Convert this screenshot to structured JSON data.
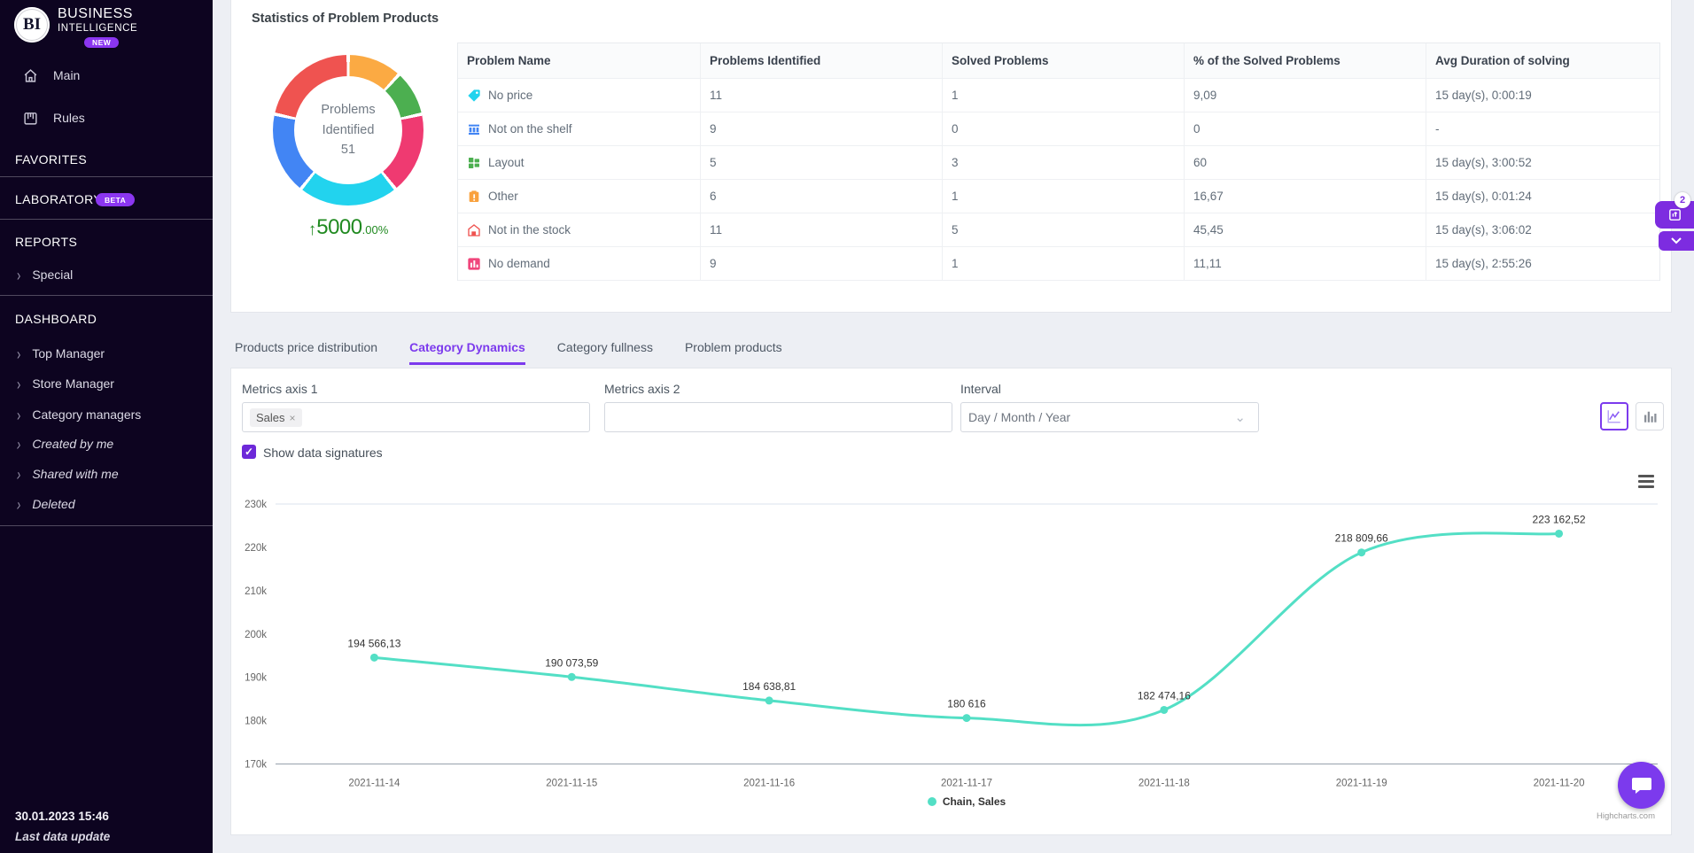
{
  "sidebar": {
    "logo": "BI",
    "brand_line1": "BUSINESS",
    "brand_line2": "INTELLIGENCE",
    "new_badge": "NEW",
    "main_label": "Main",
    "rules_label": "Rules",
    "favorites_title": "FAVORITES",
    "laboratory_title": "LABORATORY",
    "beta_badge": "BETA",
    "reports_title": "REPORTS",
    "special_label": "Special",
    "dashboard_title": "DASHBOARD",
    "dashboard_items": [
      {
        "label": "Top Manager",
        "italic": false
      },
      {
        "label": "Store Manager",
        "italic": false
      },
      {
        "label": "Category managers",
        "italic": false
      },
      {
        "label": "Created by me",
        "italic": true
      },
      {
        "label": "Shared with me",
        "italic": true
      },
      {
        "label": "Deleted",
        "italic": true
      }
    ],
    "footer_timestamp": "30.01.2023 15:46",
    "footer_caption": "Last data update"
  },
  "stats_card": {
    "title": "Statistics of Problem Products",
    "donut": {
      "center_line1": "Problems",
      "center_line2": "Identified",
      "center_value": "51",
      "change_arrow": "↑",
      "change_value": "5000",
      "change_suffix": ".00%",
      "change_color": "#218a21",
      "segments": [
        {
          "name": "Other",
          "value": 6,
          "color": "#fbaa43"
        },
        {
          "name": "Layout",
          "value": 5,
          "color": "#4caf50"
        },
        {
          "name": "No demand",
          "value": 9,
          "color": "#ef3a71"
        },
        {
          "name": "No price",
          "value": 11,
          "color": "#22d3ee"
        },
        {
          "name": "Not on the shelf",
          "value": 9,
          "color": "#4285f4"
        },
        {
          "name": "Not in the stock",
          "value": 11,
          "color": "#ef5350"
        }
      ]
    },
    "table": {
      "columns": [
        "Problem Name",
        "Problems Identified",
        "Solved Problems",
        "% of the Solved Problems",
        "Avg Duration of solving"
      ],
      "rows": [
        {
          "icon": "price-tag-icon",
          "name": "No price",
          "identified": "11",
          "solved": "1",
          "percent": "9,09",
          "duration": "15 day(s), 0:00:19"
        },
        {
          "icon": "shelf-icon",
          "name": "Not on the shelf",
          "identified": "9",
          "solved": "0",
          "percent": "0",
          "duration": "-"
        },
        {
          "icon": "layout-icon",
          "name": "Layout",
          "identified": "5",
          "solved": "3",
          "percent": "60",
          "duration": "15 day(s), 3:00:52"
        },
        {
          "icon": "clipboard-icon",
          "name": "Other",
          "identified": "6",
          "solved": "1",
          "percent": "16,67",
          "duration": "15 day(s), 0:01:24"
        },
        {
          "icon": "warehouse-icon",
          "name": "Not in the stock",
          "identified": "11",
          "solved": "5",
          "percent": "45,45",
          "duration": "15 day(s), 3:06:02"
        },
        {
          "icon": "bar-chart-icon",
          "name": "No demand",
          "identified": "9",
          "solved": "1",
          "percent": "11,11",
          "duration": "15 day(s), 2:55:26"
        }
      ]
    }
  },
  "tabs": [
    {
      "label": "Products price distribution",
      "active": false
    },
    {
      "label": "Category Dynamics",
      "active": true
    },
    {
      "label": "Category fullness",
      "active": false
    },
    {
      "label": "Problem products",
      "active": false
    }
  ],
  "controls": {
    "metrics1_label": "Metrics axis 1",
    "metrics1_chip": "Sales",
    "chip_remove": "×",
    "metrics2_label": "Metrics axis 2",
    "metrics2_value": "",
    "interval_label": "Interval",
    "interval_value": "Day / Month / Year",
    "show_signatures_label": "Show data signatures",
    "checkbox_checked": "✓",
    "accent_color": "#7c3aed"
  },
  "chart_data": {
    "type": "line",
    "title": "",
    "categories": [
      "2021-11-14",
      "2021-11-15",
      "2021-11-16",
      "2021-11-17",
      "2021-11-18",
      "2021-11-19",
      "2021-11-20"
    ],
    "series": [
      {
        "name": "Chain, Sales",
        "color": "#53dfc5",
        "values": [
          194566.13,
          190073.59,
          184638.81,
          180616,
          182474.16,
          218809.66,
          223162.52
        ],
        "data_labels": [
          "194 566,13",
          "190 073,59",
          "184 638,81",
          "180 616",
          "182 474,16",
          "218 809,66",
          "223 162,52"
        ]
      }
    ],
    "ylim": [
      170000,
      230000
    ],
    "yticks": [
      "230k",
      "220k",
      "210k",
      "200k",
      "190k",
      "180k",
      "170k"
    ],
    "grid": "top line only",
    "legend_position": "bottom-center",
    "legend_label": "Chain, Sales",
    "credit": "Highcharts.com"
  },
  "floating_panel": {
    "badge": "2"
  }
}
